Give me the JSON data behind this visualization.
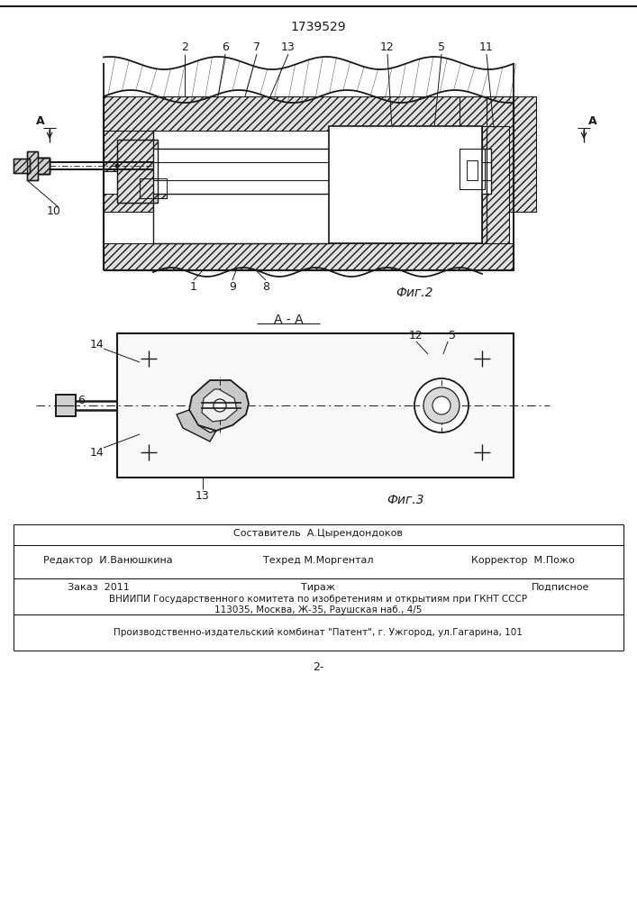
{
  "patent_number": "1739529",
  "fig2_label": "Фиг.2",
  "fig3_label": "Фиг.3",
  "section_label": "А - А",
  "bg_color": "#ffffff",
  "line_color": "#1a1a1a",
  "footer": {
    "line0_center": "Составитель  А.Цырендондоков",
    "line1_left": "Редактор  И.Ванюшкина",
    "line1_center": "Техред М.Моргентал",
    "line1_right": "Корректор  М.Пожо",
    "line2_left": "Заказ  2011",
    "line2_center": "Тираж",
    "line2_right": "Подписное",
    "line3": "ВНИИПИ Государственного комитета по изобретениям и открытиям при ГКНТ СССР",
    "line4": "113035, Москва, Ж-35, Раушская наб., 4/5",
    "line5": "Производственно-издательский комбинат \"Патент\", г. Ужгород, ул.Гагарина, 101",
    "page": "2-"
  }
}
